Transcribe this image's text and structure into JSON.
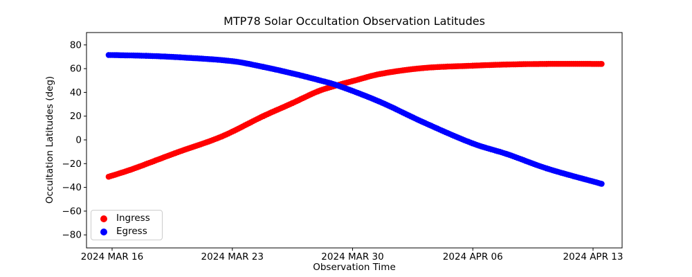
{
  "chart_data": {
    "type": "scatter",
    "title": "MTP78 Solar Occultation Observation Latitudes",
    "xlabel": "Observation Time",
    "ylabel": "Occultation Latitudes (deg)",
    "grid": false,
    "legend_position": "lower left",
    "day_reference": "2024 MAR 16",
    "x_ticks": [
      {
        "label": "2024 MAR 16",
        "day": 0
      },
      {
        "label": "2024 MAR 23",
        "day": 7
      },
      {
        "label": "2024 MAR 30",
        "day": 14
      },
      {
        "label": "2024 APR 06",
        "day": 21
      },
      {
        "label": "2024 APR 13",
        "day": 28
      }
    ],
    "y_ticks": [
      {
        "label": "80",
        "value": 80
      },
      {
        "label": "60",
        "value": 60
      },
      {
        "label": "40",
        "value": 40
      },
      {
        "label": "20",
        "value": 20
      },
      {
        "label": "0",
        "value": 0
      },
      {
        "label": "−20",
        "value": -20
      },
      {
        "label": "−40",
        "value": -40
      },
      {
        "label": "−60",
        "value": -60
      },
      {
        "label": "−80",
        "value": -80
      }
    ],
    "xlim_days": [
      -1.5,
      29.7
    ],
    "ylim": [
      -91,
      90.4
    ],
    "marker": "circle",
    "series": [
      {
        "name": "Ingress",
        "color": "#ff0000",
        "points_day_lat": [
          [
            -0.2,
            -31
          ],
          [
            1.1,
            -25
          ],
          [
            3.7,
            -11
          ],
          [
            6.4,
            3
          ],
          [
            8.8,
            20
          ],
          [
            10.5,
            31
          ],
          [
            12,
            41
          ],
          [
            13.1,
            46
          ],
          [
            14,
            49.5
          ],
          [
            15.6,
            55.5
          ],
          [
            18.1,
            60.5
          ],
          [
            21,
            62.5
          ],
          [
            23,
            63.5
          ],
          [
            25.3,
            64
          ],
          [
            28.5,
            64
          ]
        ]
      },
      {
        "name": "Egress",
        "color": "#0000ff",
        "points_day_lat": [
          [
            -0.2,
            71.5
          ],
          [
            2,
            70.8
          ],
          [
            4,
            69.5
          ],
          [
            7,
            66.3
          ],
          [
            8.8,
            61.5
          ],
          [
            10.5,
            56
          ],
          [
            12,
            50.5
          ],
          [
            13.1,
            46
          ],
          [
            15.6,
            32
          ],
          [
            18.1,
            15
          ],
          [
            21,
            -3
          ],
          [
            23,
            -12
          ],
          [
            25.3,
            -24
          ],
          [
            28.5,
            -37
          ]
        ]
      }
    ]
  }
}
